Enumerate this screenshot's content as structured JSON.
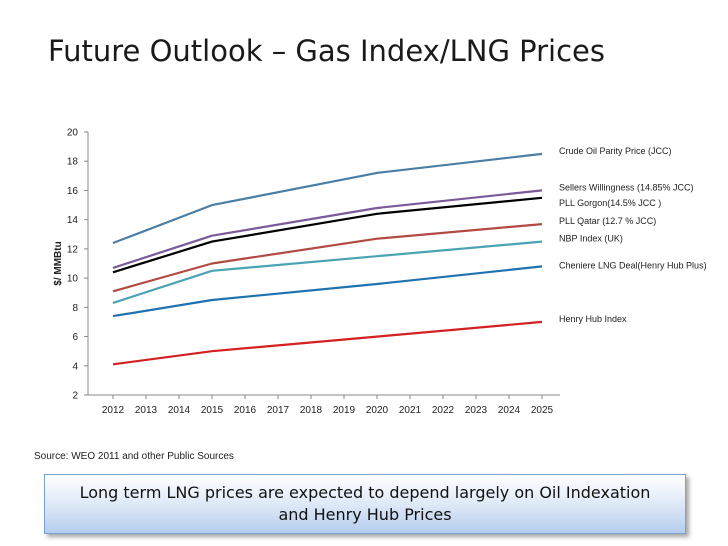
{
  "slide": {
    "title": "Future Outlook – Gas Index/LNG Prices",
    "source": "Source:  WEO 2011 and other Public Sources",
    "callout": "Long term LNG prices are expected to depend largely on Oil Indexation and Henry Hub Prices"
  },
  "chart_data": {
    "type": "line",
    "title": "",
    "ylabel": "$/ MMBtu",
    "xlabel": "",
    "ylim": [
      2,
      20
    ],
    "yticks": [
      2,
      4,
      6,
      8,
      10,
      12,
      14,
      16,
      18,
      20
    ],
    "x": [
      2012,
      2013,
      2014,
      2015,
      2016,
      2017,
      2018,
      2019,
      2020,
      2021,
      2022,
      2023,
      2024,
      2025
    ],
    "x_tick_labels": [
      "2012",
      "2013",
      "2014",
      "2015",
      "2016",
      "2017",
      "2018",
      "2019",
      "2020",
      "2021",
      "2022",
      "2023",
      "2024",
      "2025"
    ],
    "grid": false,
    "legend": "labels at line ends (right)",
    "series": [
      {
        "name": "Crude Oil Parity Price (JCC)",
        "color": "#4a7ea6",
        "points": [
          [
            2012,
            12.4
          ],
          [
            2015,
            15.0
          ],
          [
            2020,
            17.2
          ],
          [
            2025,
            18.5
          ]
        ]
      },
      {
        "name": "Sellers Willingness (14.85% JCC)",
        "color": "#7a5a98",
        "points": [
          [
            2012,
            10.7
          ],
          [
            2015,
            12.9
          ],
          [
            2020,
            14.8
          ],
          [
            2025,
            16.0
          ]
        ]
      },
      {
        "name": "PLL Gorgon(14.5% JCC )",
        "color": "#000000",
        "points": [
          [
            2012,
            10.4
          ],
          [
            2015,
            12.5
          ],
          [
            2020,
            14.4
          ],
          [
            2025,
            15.5
          ]
        ]
      },
      {
        "name": "PLL Qatar (12.7 % JCC)",
        "color": "#b24a44",
        "points": [
          [
            2012,
            9.1
          ],
          [
            2015,
            11.0
          ],
          [
            2020,
            12.7
          ],
          [
            2025,
            13.7
          ]
        ]
      },
      {
        "name": "NBP Index (UK)",
        "color": "#4aa3b3",
        "points": [
          [
            2012,
            8.3
          ],
          [
            2015,
            10.5
          ],
          [
            2020,
            11.5
          ],
          [
            2025,
            12.5
          ]
        ]
      },
      {
        "name": "Cheniere LNG Deal(Henry Hub Plus)",
        "color": "#1f72b0",
        "points": [
          [
            2012,
            7.4
          ],
          [
            2015,
            8.5
          ],
          [
            2020,
            9.6
          ],
          [
            2025,
            10.8
          ]
        ]
      },
      {
        "name": "Henry Hub Index",
        "color": "#d42020",
        "points": [
          [
            2012,
            4.1
          ],
          [
            2015,
            5.0
          ],
          [
            2020,
            6.0
          ],
          [
            2025,
            7.0
          ]
        ]
      }
    ]
  }
}
